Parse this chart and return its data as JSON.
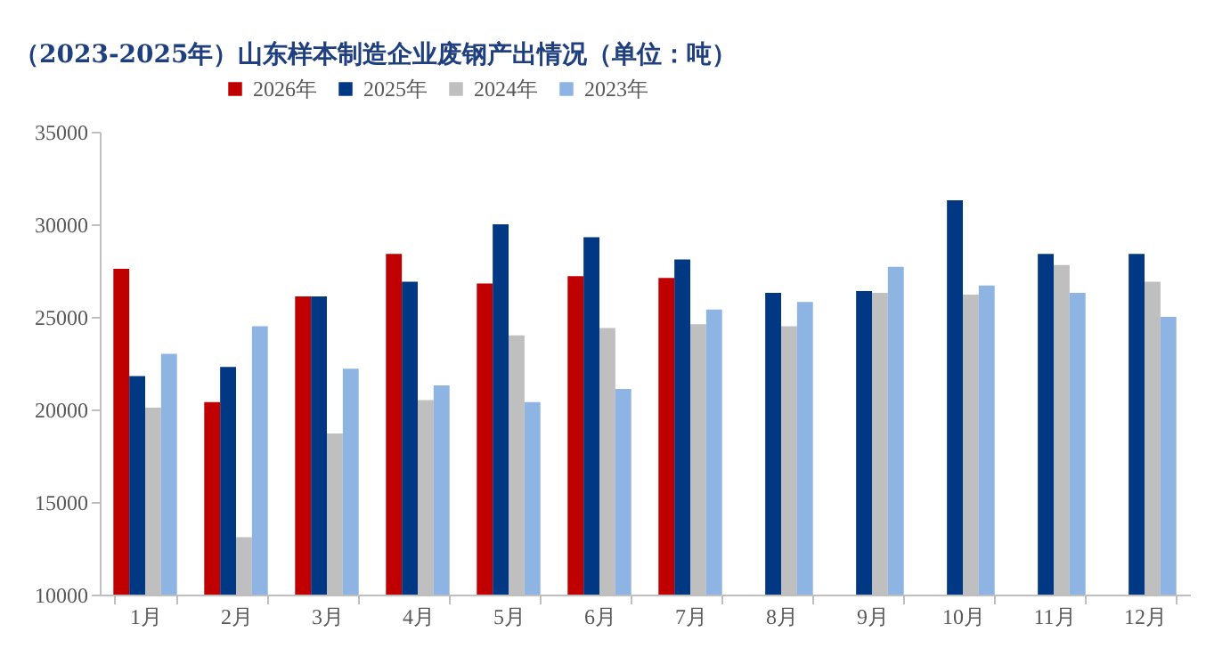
{
  "chart_data": {
    "type": "bar",
    "title": "（2023-2025年）山东样本制造企业废钢产出情况（单位：吨）",
    "categories": [
      "1月",
      "2月",
      "3月",
      "4月",
      "5月",
      "6月",
      "7月",
      "8月",
      "9月",
      "10月",
      "11月",
      "12月"
    ],
    "series": [
      {
        "name": "2026年",
        "color": "#c00000",
        "values": [
          27600,
          20400,
          26100,
          28400,
          26800,
          27200,
          27100,
          null,
          null,
          null,
          null,
          null
        ]
      },
      {
        "name": "2025年",
        "color": "#003884",
        "values": [
          21800,
          22300,
          26100,
          26900,
          30000,
          29300,
          28100,
          26300,
          26400,
          31300,
          28400,
          28400
        ]
      },
      {
        "name": "2024年",
        "color": "#bfbfbf",
        "values": [
          20100,
          13100,
          18700,
          20500,
          24000,
          24400,
          24600,
          24500,
          26300,
          26200,
          27800,
          26900
        ]
      },
      {
        "name": "2023年",
        "color": "#8eb4e3",
        "values": [
          23000,
          24500,
          22200,
          21300,
          20400,
          21100,
          25400,
          25800,
          27700,
          26700,
          26300,
          25000
        ]
      }
    ],
    "ylim": [
      10000,
      35000
    ],
    "yticks": [
      10000,
      15000,
      20000,
      25000,
      30000,
      35000
    ],
    "grid": false,
    "legend": "top"
  }
}
